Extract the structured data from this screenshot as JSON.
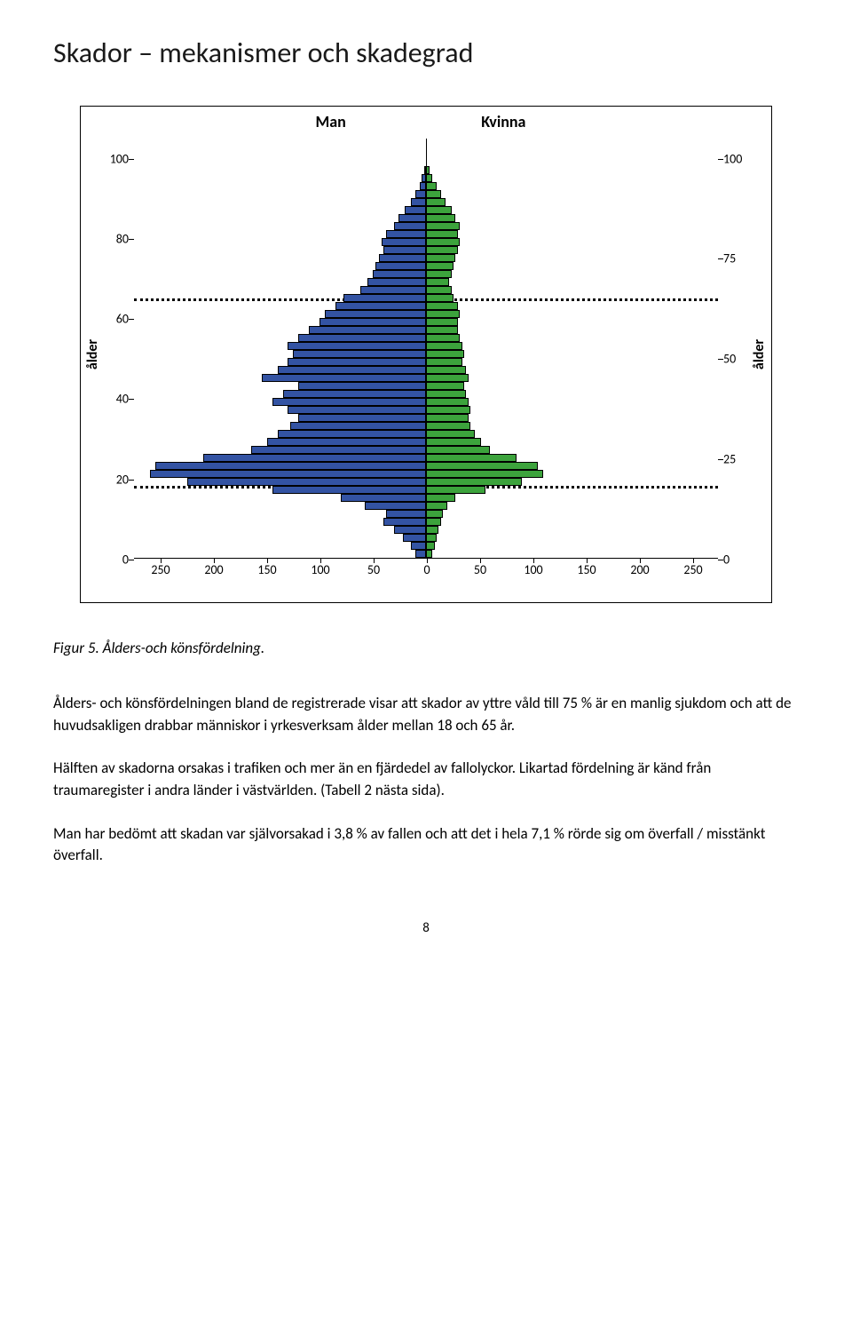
{
  "title": "Skador – mekanismer och skadegrad",
  "caption": "Figur 5. Ålders-och könsfördelning.",
  "paragraphs": [
    "Ålders- och könsfördelningen bland de registrerade visar att skador av yttre våld till 75 % är en manlig sjukdom och att de huvudsakligen drabbar människor i yrkesverksam ålder mellan 18 och 65 år.",
    "Hälften av skadorna orsakas i trafiken och mer än en fjärdedel av fallolyckor. Likartad fördelning är känd från traumaregister i andra länder i västvärlden. (Tabell 2 nästa sida).",
    "Man har bedömt att skadan var självorsakad i 3,8 % av fallen och att det i hela 7,1 % rörde sig om överfall / misstänkt överfall."
  ],
  "page_number": "8",
  "chart": {
    "type": "population-pyramid",
    "left_title": "Man",
    "right_title": "Kvinna",
    "y_label_left": "ålder",
    "y_label_right": "ålder",
    "y_min": 0,
    "y_max": 105,
    "left_y_ticks": [
      0,
      20,
      40,
      60,
      80,
      100
    ],
    "right_y_ticks": [
      0,
      25,
      50,
      75,
      100
    ],
    "x_max": 275,
    "x_ticks_left": [
      250,
      200,
      150,
      100,
      50,
      0
    ],
    "x_ticks_right": [
      50,
      100,
      150,
      200,
      250
    ],
    "ref_lines_y": [
      18,
      65
    ],
    "left_color": "#3353a3",
    "right_color": "#3ca33c",
    "bar_border": "#000000",
    "background": "#ffffff",
    "bars": [
      {
        "age": 0,
        "l": 10,
        "r": 6
      },
      {
        "age": 2,
        "l": 14,
        "r": 8
      },
      {
        "age": 4,
        "l": 22,
        "r": 10
      },
      {
        "age": 6,
        "l": 30,
        "r": 12
      },
      {
        "age": 8,
        "l": 40,
        "r": 14
      },
      {
        "age": 10,
        "l": 38,
        "r": 16
      },
      {
        "age": 12,
        "l": 58,
        "r": 20
      },
      {
        "age": 14,
        "l": 80,
        "r": 28
      },
      {
        "age": 16,
        "l": 145,
        "r": 56
      },
      {
        "age": 18,
        "l": 225,
        "r": 90
      },
      {
        "age": 20,
        "l": 260,
        "r": 110
      },
      {
        "age": 22,
        "l": 255,
        "r": 105
      },
      {
        "age": 24,
        "l": 210,
        "r": 85
      },
      {
        "age": 26,
        "l": 165,
        "r": 60
      },
      {
        "age": 28,
        "l": 150,
        "r": 52
      },
      {
        "age": 30,
        "l": 140,
        "r": 46
      },
      {
        "age": 32,
        "l": 128,
        "r": 42
      },
      {
        "age": 34,
        "l": 120,
        "r": 40
      },
      {
        "age": 36,
        "l": 130,
        "r": 42
      },
      {
        "age": 38,
        "l": 145,
        "r": 40
      },
      {
        "age": 40,
        "l": 135,
        "r": 38
      },
      {
        "age": 42,
        "l": 120,
        "r": 36
      },
      {
        "age": 44,
        "l": 155,
        "r": 40
      },
      {
        "age": 46,
        "l": 140,
        "r": 38
      },
      {
        "age": 48,
        "l": 130,
        "r": 34
      },
      {
        "age": 50,
        "l": 125,
        "r": 36
      },
      {
        "age": 52,
        "l": 130,
        "r": 34
      },
      {
        "age": 54,
        "l": 120,
        "r": 32
      },
      {
        "age": 56,
        "l": 110,
        "r": 30
      },
      {
        "age": 58,
        "l": 100,
        "r": 30
      },
      {
        "age": 60,
        "l": 95,
        "r": 32
      },
      {
        "age": 62,
        "l": 85,
        "r": 30
      },
      {
        "age": 64,
        "l": 78,
        "r": 26
      },
      {
        "age": 66,
        "l": 62,
        "r": 24
      },
      {
        "age": 68,
        "l": 55,
        "r": 22
      },
      {
        "age": 70,
        "l": 50,
        "r": 24
      },
      {
        "age": 72,
        "l": 48,
        "r": 26
      },
      {
        "age": 74,
        "l": 44,
        "r": 28
      },
      {
        "age": 76,
        "l": 40,
        "r": 30
      },
      {
        "age": 78,
        "l": 42,
        "r": 32
      },
      {
        "age": 80,
        "l": 38,
        "r": 30
      },
      {
        "age": 82,
        "l": 30,
        "r": 32
      },
      {
        "age": 84,
        "l": 26,
        "r": 28
      },
      {
        "age": 86,
        "l": 20,
        "r": 24
      },
      {
        "age": 88,
        "l": 14,
        "r": 18
      },
      {
        "age": 90,
        "l": 10,
        "r": 14
      },
      {
        "age": 92,
        "l": 6,
        "r": 10
      },
      {
        "age": 94,
        "l": 4,
        "r": 6
      },
      {
        "age": 96,
        "l": 2,
        "r": 3
      }
    ]
  }
}
